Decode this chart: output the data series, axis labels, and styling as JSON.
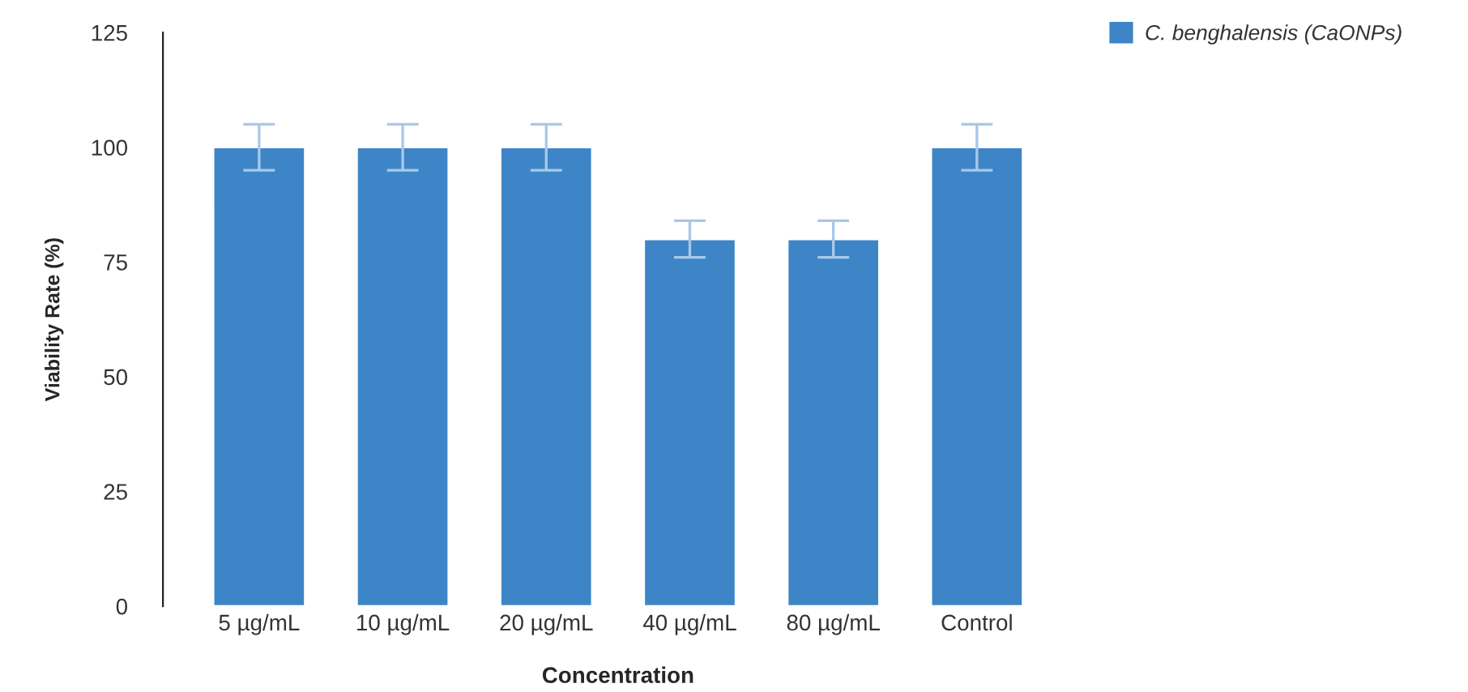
{
  "chart_data": {
    "type": "bar",
    "xlabel": "Concentration",
    "ylabel": "Viability Rate (%)",
    "categories": [
      "5 µg/mL",
      "10 µg/mL",
      "20 µg/mL",
      "40 µg/mL",
      "80 µg/mL",
      "Control"
    ],
    "series": [
      {
        "name": "C. benghalensis (CaONPs)",
        "color": "#3d85c6",
        "values": [
          100,
          100,
          100,
          80,
          80,
          100
        ],
        "errors": [
          5,
          5,
          5,
          4,
          4,
          5
        ]
      }
    ],
    "ylim": [
      0,
      125
    ],
    "yticks": [
      0,
      25,
      50,
      75,
      100,
      125
    ],
    "grid": false,
    "legend": "top right"
  }
}
